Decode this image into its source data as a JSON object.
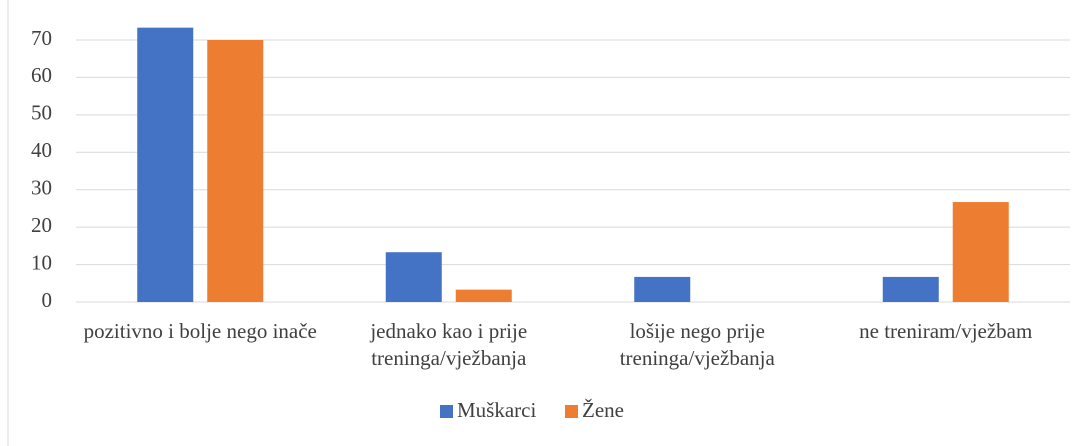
{
  "chart_data": {
    "type": "bar",
    "categories": [
      "pozitivno i bolje nego inače",
      "jednako kao i prije treninga/vježbanja",
      "lošije nego prije treninga/vježbanja",
      "ne treniram/vježbam"
    ],
    "series": [
      {
        "name": "Muškarci",
        "color": "#4472c4",
        "values": [
          73.3,
          13.3,
          6.7,
          6.7
        ]
      },
      {
        "name": "Žene",
        "color": "#ed7d31",
        "values": [
          70,
          3.3,
          0,
          26.7
        ]
      }
    ],
    "ylim": [
      0,
      70
    ],
    "yticks": [
      0,
      10,
      20,
      30,
      40,
      50,
      60,
      70
    ],
    "grid": true,
    "legend": "bottom"
  }
}
